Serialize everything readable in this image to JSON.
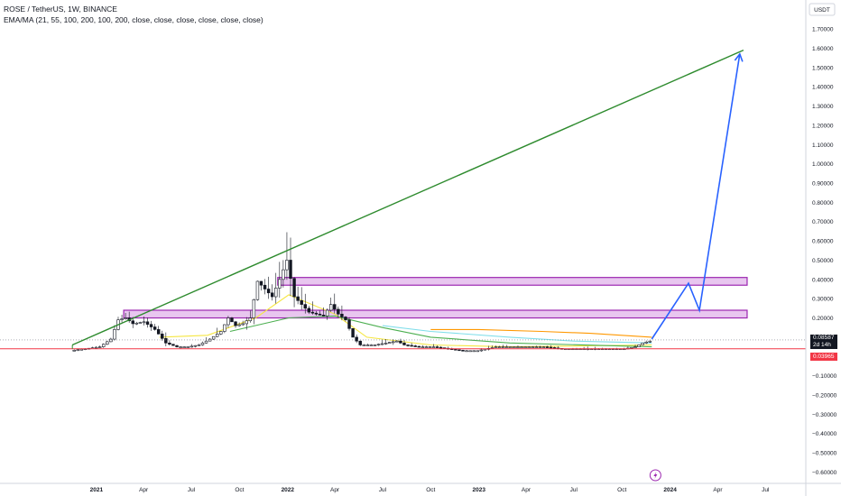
{
  "legend": {
    "title": "ROSE / TetherUS, 1W, BINANCE",
    "indicator": "EMA/MA (21, 55, 100, 200, 100, 200, close, close, close, close, close, close)"
  },
  "currency_label": "USDT",
  "last_price": {
    "value": "0.08587",
    "countdown": "2d 14h",
    "color": "#131722"
  },
  "support_price": {
    "value": "0.03965",
    "color": "#f23645"
  },
  "flash_icon": "lightning-icon",
  "colors": {
    "up_candle": "#ffffff",
    "down_candle": "#131722",
    "trendline": "#2e8b2e",
    "projection": "#2962ff",
    "zone_fill": "#e8c6ef",
    "zone_border": "#9c27b0",
    "support_line": "#f23645",
    "ema21": "#f5e642",
    "ema55": "#4caf50",
    "ema100": "#80deea",
    "ema200": "#ff9800"
  },
  "chart_data": {
    "type": "candlestick",
    "title": "ROSE / TetherUS, 1W, BINANCE",
    "x_tick_labels": [
      "2021",
      "Apr",
      "Jul",
      "Oct",
      "2022",
      "Apr",
      "Jul",
      "Oct",
      "2023",
      "Apr",
      "Jul",
      "Oct",
      "2024",
      "Apr",
      "Jul"
    ],
    "x_tick_dates": [
      "2021-01-01",
      "2021-04-01",
      "2021-07-01",
      "2021-10-01",
      "2022-01-01",
      "2022-04-01",
      "2022-07-01",
      "2022-10-01",
      "2023-01-01",
      "2023-04-01",
      "2023-07-01",
      "2023-10-01",
      "2024-01-01",
      "2024-04-01",
      "2024-07-01"
    ],
    "y_tick_labels": [
      "1.70000",
      "1.60000",
      "1.50000",
      "1.40000",
      "1.30000",
      "1.20000",
      "1.10000",
      "1.00000",
      "0.90000",
      "0.80000",
      "0.70000",
      "0.60000",
      "0.50000",
      "0.40000",
      "0.30000",
      "0.20000",
      "0.10000",
      "0.00000",
      "−0.10000",
      "−0.20000",
      "−0.30000",
      "−0.40000",
      "−0.50000",
      "−0.60000"
    ],
    "ylim": [
      -0.64,
      1.78
    ],
    "price_points": [
      [
        "2020-11-16",
        0.03
      ],
      [
        "2020-12-14",
        0.04
      ],
      [
        "2021-01-11",
        0.05
      ],
      [
        "2021-02-01",
        0.09
      ],
      [
        "2021-02-15",
        0.19
      ],
      [
        "2021-03-01",
        0.2
      ],
      [
        "2021-03-15",
        0.17
      ],
      [
        "2021-04-05",
        0.18
      ],
      [
        "2021-04-26",
        0.14
      ],
      [
        "2021-05-17",
        0.07
      ],
      [
        "2021-06-07",
        0.05
      ],
      [
        "2021-06-28",
        0.05
      ],
      [
        "2021-07-19",
        0.06
      ],
      [
        "2021-08-09",
        0.09
      ],
      [
        "2021-08-30",
        0.13
      ],
      [
        "2021-09-13",
        0.2
      ],
      [
        "2021-09-27",
        0.16
      ],
      [
        "2021-10-11",
        0.17
      ],
      [
        "2021-10-25",
        0.2
      ],
      [
        "2021-11-08",
        0.39
      ],
      [
        "2021-11-22",
        0.35
      ],
      [
        "2021-12-06",
        0.31
      ],
      [
        "2021-12-20",
        0.4
      ],
      [
        "2022-01-03",
        0.5
      ],
      [
        "2022-01-17",
        0.31
      ],
      [
        "2022-01-31",
        0.27
      ],
      [
        "2022-02-14",
        0.23
      ],
      [
        "2022-02-28",
        0.22
      ],
      [
        "2022-03-14",
        0.21
      ],
      [
        "2022-03-28",
        0.27
      ],
      [
        "2022-04-11",
        0.22
      ],
      [
        "2022-04-25",
        0.19
      ],
      [
        "2022-05-09",
        0.1
      ],
      [
        "2022-05-23",
        0.06
      ],
      [
        "2022-06-20",
        0.06
      ],
      [
        "2022-07-11",
        0.07
      ],
      [
        "2022-08-01",
        0.08
      ],
      [
        "2022-08-15",
        0.06
      ],
      [
        "2022-09-12",
        0.05
      ],
      [
        "2022-10-10",
        0.05
      ],
      [
        "2022-11-07",
        0.04
      ],
      [
        "2022-12-05",
        0.03
      ],
      [
        "2023-01-02",
        0.03
      ],
      [
        "2023-02-06",
        0.05
      ],
      [
        "2023-03-06",
        0.05
      ],
      [
        "2023-04-03",
        0.05
      ],
      [
        "2023-05-08",
        0.05
      ],
      [
        "2023-06-12",
        0.04
      ],
      [
        "2023-07-10",
        0.04
      ],
      [
        "2023-08-14",
        0.04
      ],
      [
        "2023-09-11",
        0.04
      ],
      [
        "2023-10-09",
        0.04
      ],
      [
        "2023-10-30",
        0.05
      ],
      [
        "2023-11-13",
        0.07
      ],
      [
        "2023-11-27",
        0.08
      ]
    ],
    "trendline": {
      "from": [
        "2020-11-16",
        0.06
      ],
      "to": [
        "2024-05-20",
        1.59
      ]
    },
    "projection_path": [
      [
        "2023-11-27",
        0.09
      ],
      [
        "2024-02-05",
        0.38
      ],
      [
        "2024-02-26",
        0.24
      ],
      [
        "2024-05-13",
        1.57
      ]
    ],
    "resistance_zones": [
      {
        "from": "2021-12-13",
        "to": "2024-05-27",
        "y_low": 0.37,
        "y_high": 0.41
      },
      {
        "from": "2021-02-22",
        "to": "2024-05-27",
        "y_low": 0.2,
        "y_high": 0.24
      }
    ],
    "support_level": 0.03965,
    "last_price": 0.08587,
    "moving_averages": [
      {
        "key": "ema21",
        "points": [
          [
            "2021-05-01",
            0.1
          ],
          [
            "2021-08-01",
            0.11
          ],
          [
            "2021-11-01",
            0.2
          ],
          [
            "2022-01-03",
            0.32
          ],
          [
            "2022-04-01",
            0.22
          ],
          [
            "2022-06-01",
            0.1
          ],
          [
            "2022-10-01",
            0.06
          ],
          [
            "2023-03-01",
            0.05
          ],
          [
            "2023-11-27",
            0.06
          ]
        ]
      },
      {
        "key": "ema55",
        "points": [
          [
            "2021-09-13",
            0.13
          ],
          [
            "2022-01-03",
            0.2
          ],
          [
            "2022-04-01",
            0.21
          ],
          [
            "2022-07-01",
            0.15
          ],
          [
            "2022-10-01",
            0.1
          ],
          [
            "2023-03-01",
            0.07
          ],
          [
            "2023-11-27",
            0.05
          ]
        ]
      },
      {
        "key": "ema100",
        "points": [
          [
            "2022-07-01",
            0.16
          ],
          [
            "2022-10-01",
            0.13
          ],
          [
            "2023-03-01",
            0.1
          ],
          [
            "2023-07-01",
            0.08
          ],
          [
            "2023-11-27",
            0.07
          ]
        ]
      },
      {
        "key": "ema200",
        "points": [
          [
            "2022-10-01",
            0.14
          ],
          [
            "2023-01-01",
            0.14
          ],
          [
            "2023-05-01",
            0.13
          ],
          [
            "2023-08-01",
            0.12
          ],
          [
            "2023-11-27",
            0.1
          ]
        ]
      }
    ]
  }
}
